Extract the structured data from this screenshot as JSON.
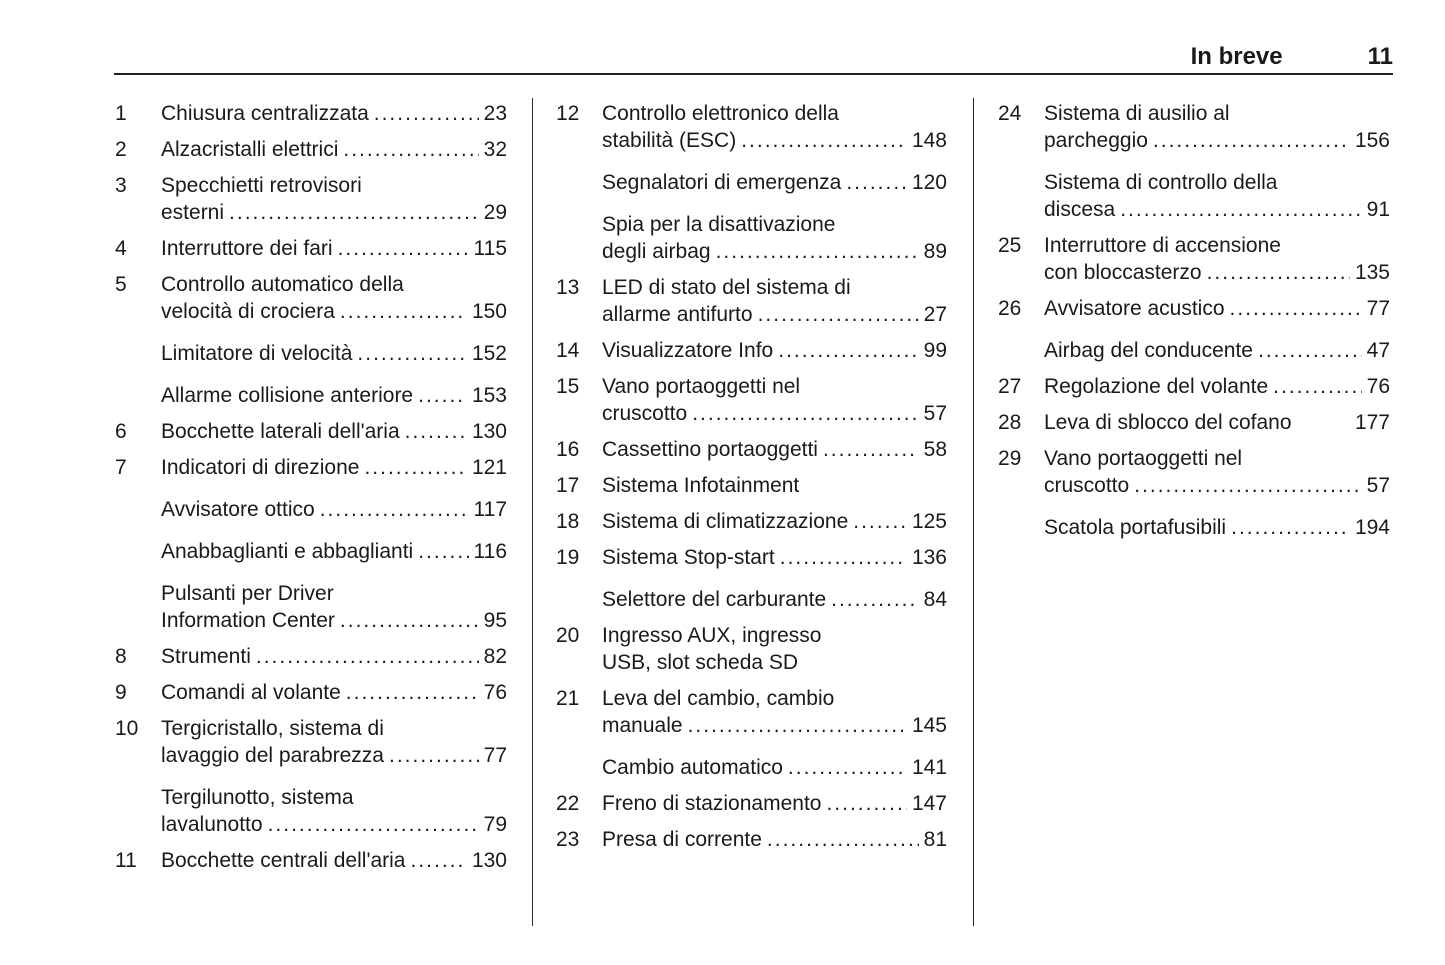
{
  "header": {
    "title": "In breve",
    "page_number": "11"
  },
  "colors": {
    "text": "#1a1a1a",
    "rule": "#1f1f1f",
    "background": "#ffffff"
  },
  "columns": [
    {
      "entries": [
        {
          "num": "1",
          "lines": [
            "Chiusura centralizzata"
          ],
          "page": "23"
        },
        {
          "num": "2",
          "lines": [
            "Alzacristalli elettrici"
          ],
          "page": "32"
        },
        {
          "num": "3",
          "lines": [
            "Specchietti retrovisori",
            "esterni"
          ],
          "page": "29"
        },
        {
          "num": "4",
          "lines": [
            "Interruttore dei fari"
          ],
          "page": "115"
        },
        {
          "num": "5",
          "lines": [
            "Controllo automatico della",
            "velocità di crociera"
          ],
          "page": "150"
        },
        {
          "num": "",
          "lines": [
            "Limitatore di velocità"
          ],
          "page": "152"
        },
        {
          "num": "",
          "lines": [
            "Allarme collisione anteriore"
          ],
          "page": "153"
        },
        {
          "num": "6",
          "lines": [
            "Bocchette laterali dell'aria"
          ],
          "page": "130"
        },
        {
          "num": "7",
          "lines": [
            "Indicatori di direzione"
          ],
          "page": "121"
        },
        {
          "num": "",
          "lines": [
            "Avvisatore ottico"
          ],
          "page": "117"
        },
        {
          "num": "",
          "lines": [
            "Anabbaglianti e abbaglianti"
          ],
          "page": "116"
        },
        {
          "num": "",
          "lines": [
            "Pulsanti per Driver",
            "Information Center"
          ],
          "page": "95"
        },
        {
          "num": "8",
          "lines": [
            "Strumenti"
          ],
          "page": "82"
        },
        {
          "num": "9",
          "lines": [
            "Comandi al volante"
          ],
          "page": "76"
        },
        {
          "num": "10",
          "lines": [
            "Tergicristallo, sistema di",
            "lavaggio del parabrezza"
          ],
          "page": "77"
        },
        {
          "num": "",
          "lines": [
            "Tergilunotto, sistema",
            "lavalunotto"
          ],
          "page": "79"
        },
        {
          "num": "11",
          "lines": [
            "Bocchette centrali dell'aria"
          ],
          "page": "130"
        }
      ]
    },
    {
      "entries": [
        {
          "num": "12",
          "lines": [
            "Controllo elettronico della",
            "stabilità (ESC)"
          ],
          "page": "148"
        },
        {
          "num": "",
          "lines": [
            "Segnalatori di emergenza"
          ],
          "page": "120"
        },
        {
          "num": "",
          "lines": [
            "Spia per la disattivazione",
            "degli airbag"
          ],
          "page": "89"
        },
        {
          "num": "13",
          "lines": [
            "LED di stato del sistema di",
            "allarme antifurto"
          ],
          "page": "27"
        },
        {
          "num": "14",
          "lines": [
            "Visualizzatore Info"
          ],
          "page": "99"
        },
        {
          "num": "15",
          "lines": [
            "Vano portaoggetti nel",
            "cruscotto"
          ],
          "page": "57"
        },
        {
          "num": "16",
          "lines": [
            "Cassettino portaoggetti"
          ],
          "page": "58"
        },
        {
          "num": "17",
          "lines": [
            "Sistema Infotainment"
          ],
          "page": ""
        },
        {
          "num": "18",
          "lines": [
            "Sistema di climatizzazione"
          ],
          "page": "125"
        },
        {
          "num": "19",
          "lines": [
            "Sistema Stop-start"
          ],
          "page": "136"
        },
        {
          "num": "",
          "lines": [
            "Selettore del carburante"
          ],
          "page": "84"
        },
        {
          "num": "20",
          "lines": [
            "Ingresso AUX, ingresso",
            "USB, slot scheda SD"
          ],
          "page": ""
        },
        {
          "num": "21",
          "lines": [
            "Leva del cambio, cambio",
            "manuale"
          ],
          "page": "145"
        },
        {
          "num": "",
          "lines": [
            "Cambio automatico"
          ],
          "page": "141"
        },
        {
          "num": "22",
          "lines": [
            "Freno di stazionamento"
          ],
          "page": "147"
        },
        {
          "num": "23",
          "lines": [
            "Presa di corrente"
          ],
          "page": "81"
        }
      ]
    },
    {
      "entries": [
        {
          "num": "24",
          "lines": [
            "Sistema di ausilio al",
            "parcheggio"
          ],
          "page": "156"
        },
        {
          "num": "",
          "lines": [
            "Sistema di controllo della",
            "discesa"
          ],
          "page": "91"
        },
        {
          "num": "25",
          "lines": [
            "Interruttore di accensione",
            "con bloccasterzo"
          ],
          "page": "135"
        },
        {
          "num": "26",
          "lines": [
            "Avvisatore acustico"
          ],
          "page": "77"
        },
        {
          "num": "",
          "lines": [
            "Airbag del conducente"
          ],
          "page": "47"
        },
        {
          "num": "27",
          "lines": [
            "Regolazione del volante"
          ],
          "page": "76"
        },
        {
          "num": "28",
          "lines": [
            "Leva di sblocco del cofano"
          ],
          "page": "177",
          "leader": false
        },
        {
          "num": "29",
          "lines": [
            "Vano portaoggetti nel",
            "cruscotto"
          ],
          "page": "57"
        },
        {
          "num": "",
          "lines": [
            "Scatola portafusibili"
          ],
          "page": "194"
        }
      ]
    }
  ]
}
